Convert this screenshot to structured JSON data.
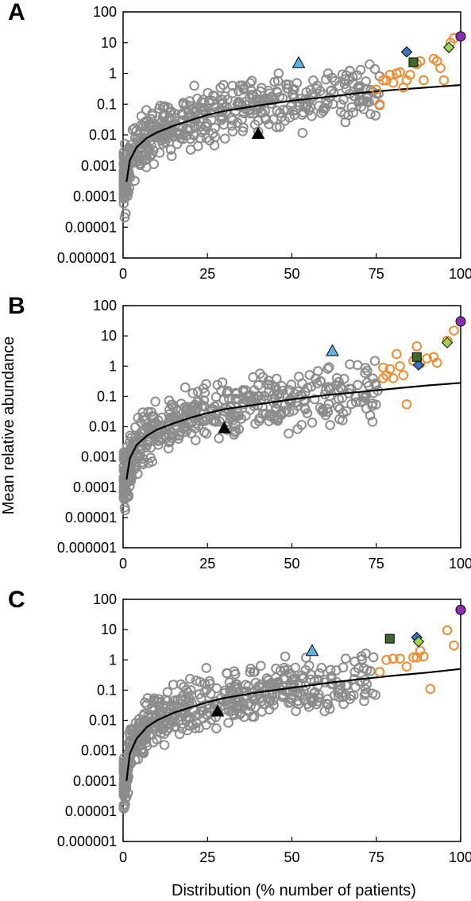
{
  "figure": {
    "ylabel": "Mean relative abundance",
    "xlabel": "Distribution (% number of patients)"
  },
  "colors": {
    "gray_points": "#8c8c8c",
    "orange_points": "#f28a2e",
    "fit_line": "#000000",
    "triangle_light_blue": "#5fb3e6",
    "triangle_black": "#000000",
    "diamond_blue": "#3a74c4",
    "square_dark_green": "#3e6b2d",
    "diamond_light_green": "#9ed54a",
    "circle_purple": "#8a2fb0"
  },
  "chart_data": [
    {
      "panel": "A",
      "type": "scatter",
      "title": "",
      "x_scale": "linear",
      "y_scale": "log",
      "xlim": [
        0,
        100
      ],
      "ylim": [
        1e-06,
        100
      ],
      "x_ticks": [
        "0",
        "25",
        "50",
        "75",
        "100"
      ],
      "y_ticks": [
        "0.000001",
        "0.00001",
        "0.0001",
        "0.001",
        "0.01",
        "0.1",
        "1",
        "10",
        "100"
      ],
      "grid": false,
      "fit_line": [
        [
          1,
          0.0003
        ],
        [
          2,
          0.0015
        ],
        [
          4,
          0.004
        ],
        [
          7,
          0.008
        ],
        [
          10,
          0.012
        ],
        [
          15,
          0.02
        ],
        [
          20,
          0.03
        ],
        [
          25,
          0.045
        ],
        [
          30,
          0.06
        ],
        [
          40,
          0.09
        ],
        [
          50,
          0.13
        ],
        [
          60,
          0.17
        ],
        [
          70,
          0.23
        ],
        [
          80,
          0.29
        ],
        [
          90,
          0.35
        ],
        [
          100,
          0.42
        ]
      ],
      "special_points": [
        {
          "shape": "triangle",
          "color": "light_blue",
          "x": 52,
          "y": 2.2
        },
        {
          "shape": "triangle",
          "color": "black",
          "x": 40,
          "y": 0.011
        },
        {
          "shape": "diamond",
          "color": "blue",
          "x": 84,
          "y": 5
        },
        {
          "shape": "square",
          "color": "dark_green",
          "x": 86,
          "y": 2.3
        },
        {
          "shape": "diamond",
          "color": "light_green",
          "x": 96.5,
          "y": 7
        },
        {
          "shape": "circle",
          "color": "purple",
          "x": 100,
          "y": 16
        }
      ],
      "orange_points": [
        [
          78,
          0.6
        ],
        [
          79,
          0.9
        ],
        [
          80,
          0.5
        ],
        [
          81,
          1
        ],
        [
          82,
          1.1
        ],
        [
          83,
          0.35
        ],
        [
          84,
          0.6
        ],
        [
          85,
          0.9
        ],
        [
          87,
          2
        ],
        [
          88,
          2.5
        ],
        [
          89,
          0.6
        ],
        [
          92,
          3
        ],
        [
          93,
          2.5
        ],
        [
          94,
          1.5
        ],
        [
          95,
          0.6
        ],
        [
          97,
          10
        ],
        [
          98,
          14
        ],
        [
          75,
          0.3
        ],
        [
          76,
          0.1
        ],
        [
          77,
          0.6
        ]
      ],
      "gray_seed": 11,
      "gray_count": 520,
      "gray_xmax": 76,
      "gray_spread": 1.15
    },
    {
      "panel": "B",
      "type": "scatter",
      "title": "",
      "x_scale": "linear",
      "y_scale": "log",
      "xlim": [
        0,
        100
      ],
      "ylim": [
        1e-06,
        100
      ],
      "x_ticks": [
        "0",
        "25",
        "50",
        "75",
        "100"
      ],
      "y_ticks": [
        "0.000001",
        "0.00001",
        "0.0001",
        "0.001",
        "0.01",
        "0.1",
        "1",
        "10",
        "100"
      ],
      "grid": false,
      "fit_line": [
        [
          1,
          0.00018
        ],
        [
          2,
          0.0009
        ],
        [
          4,
          0.0025
        ],
        [
          7,
          0.005
        ],
        [
          10,
          0.008
        ],
        [
          15,
          0.013
        ],
        [
          20,
          0.02
        ],
        [
          25,
          0.028
        ],
        [
          30,
          0.038
        ],
        [
          40,
          0.055
        ],
        [
          50,
          0.08
        ],
        [
          60,
          0.11
        ],
        [
          70,
          0.14
        ],
        [
          80,
          0.18
        ],
        [
          90,
          0.23
        ],
        [
          100,
          0.28
        ]
      ],
      "special_points": [
        {
          "shape": "triangle",
          "color": "light_blue",
          "x": 62,
          "y": 3.2
        },
        {
          "shape": "triangle",
          "color": "black",
          "x": 30,
          "y": 0.009
        },
        {
          "shape": "diamond",
          "color": "blue",
          "x": 87.5,
          "y": 1.1
        },
        {
          "shape": "square",
          "color": "dark_green",
          "x": 87,
          "y": 2
        },
        {
          "shape": "diamond",
          "color": "light_green",
          "x": 96,
          "y": 6
        },
        {
          "shape": "circle",
          "color": "purple",
          "x": 100,
          "y": 30
        }
      ],
      "orange_points": [
        [
          77,
          0.4
        ],
        [
          78,
          0.5
        ],
        [
          79,
          0.8
        ],
        [
          80,
          0.4
        ],
        [
          81,
          2.5
        ],
        [
          82,
          1
        ],
        [
          83,
          0.5
        ],
        [
          84,
          0.055
        ],
        [
          86,
          1.5
        ],
        [
          87,
          4.5
        ],
        [
          88,
          1.2
        ],
        [
          90,
          1.8
        ],
        [
          92,
          2
        ],
        [
          93,
          1.3
        ],
        [
          96,
          7
        ],
        [
          98,
          15
        ],
        [
          77,
          0.9
        ]
      ],
      "gray_seed": 23,
      "gray_count": 500,
      "gray_xmax": 76,
      "gray_spread": 1.2
    },
    {
      "panel": "C",
      "type": "scatter",
      "title": "",
      "x_scale": "linear",
      "y_scale": "log",
      "xlim": [
        0,
        100
      ],
      "ylim": [
        1e-06,
        100
      ],
      "x_ticks": [
        "0",
        "25",
        "50",
        "75",
        "100"
      ],
      "y_ticks": [
        "0.000001",
        "0.00001",
        "0.0001",
        "0.001",
        "0.01",
        "0.1",
        "1",
        "10",
        "100"
      ],
      "grid": false,
      "fit_line": [
        [
          1,
          0.0001
        ],
        [
          2,
          0.0008
        ],
        [
          4,
          0.0025
        ],
        [
          7,
          0.006
        ],
        [
          10,
          0.01
        ],
        [
          15,
          0.018
        ],
        [
          20,
          0.027
        ],
        [
          25,
          0.04
        ],
        [
          30,
          0.055
        ],
        [
          40,
          0.085
        ],
        [
          50,
          0.12
        ],
        [
          60,
          0.17
        ],
        [
          70,
          0.23
        ],
        [
          80,
          0.3
        ],
        [
          90,
          0.38
        ],
        [
          100,
          0.5
        ]
      ],
      "special_points": [
        {
          "shape": "triangle",
          "color": "light_blue",
          "x": 56,
          "y": 2
        },
        {
          "shape": "triangle",
          "color": "black",
          "x": 28,
          "y": 0.02
        },
        {
          "shape": "diamond",
          "color": "blue",
          "x": 87,
          "y": 5.5
        },
        {
          "shape": "square",
          "color": "dark_green",
          "x": 79,
          "y": 5
        },
        {
          "shape": "diamond",
          "color": "light_green",
          "x": 87.5,
          "y": 4
        },
        {
          "shape": "circle",
          "color": "purple",
          "x": 100,
          "y": 45
        }
      ],
      "orange_points": [
        [
          76,
          0.4
        ],
        [
          78,
          1
        ],
        [
          80,
          1.1
        ],
        [
          82,
          1.1
        ],
        [
          84,
          0.6
        ],
        [
          86,
          1.2
        ],
        [
          87,
          1.2
        ],
        [
          88,
          2
        ],
        [
          89,
          1.3
        ],
        [
          91,
          0.11
        ],
        [
          96,
          9.5
        ],
        [
          98,
          3
        ]
      ],
      "gray_seed": 37,
      "gray_count": 540,
      "gray_xmax": 75,
      "gray_spread": 1.1
    }
  ]
}
